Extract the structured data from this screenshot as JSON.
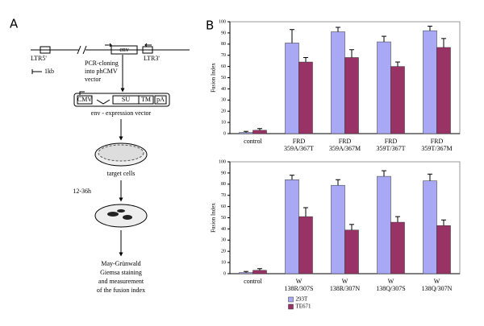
{
  "panel_a": {
    "label": "A",
    "ltr5": "LTR5'",
    "env": "env",
    "ltr3": "LTR3'",
    "scale": "1kb",
    "cloning": [
      "PCR-cloning",
      "into phCMV",
      "vector"
    ],
    "vector_parts": [
      "CMV",
      "SU",
      "TM",
      "pA"
    ],
    "vector_caption": "env - expression vector",
    "target": "target cells",
    "time": "12-36h",
    "staining": [
      "May-Grünwald",
      "Giemsa staining",
      "and measurement",
      "of the fusion index"
    ]
  },
  "panel_b_label": "B",
  "chart_data": [
    {
      "type": "bar",
      "y_label": "Fusion Index",
      "categories": [
        [
          "control"
        ],
        [
          "FRD",
          "359A/367T"
        ],
        [
          "FRD",
          "359A/367M"
        ],
        [
          "FRD",
          "359T/367T"
        ],
        [
          "FRD",
          "359T/367M"
        ]
      ],
      "series": [
        {
          "color": "#a8a8f4",
          "values": [
            1,
            81,
            91,
            82,
            92
          ],
          "errors": [
            1,
            12,
            4,
            5,
            4
          ]
        },
        {
          "color": "#993366",
          "values": [
            3,
            64,
            68,
            60,
            77
          ],
          "errors": [
            1.5,
            4,
            7,
            4,
            8
          ]
        }
      ],
      "ylim": [
        0,
        100
      ],
      "yticks": [
        0,
        10,
        20,
        30,
        40,
        50,
        60,
        70,
        80,
        90,
        100
      ]
    },
    {
      "type": "bar",
      "y_label": "Fusion Index",
      "categories": [
        [
          "control"
        ],
        [
          "W",
          "138R/307S"
        ],
        [
          "W",
          "138R/307N"
        ],
        [
          "W",
          "138Q/307S"
        ],
        [
          "W",
          "138Q/307N"
        ]
      ],
      "series": [
        {
          "name": "293T",
          "color": "#a8a8f4",
          "values": [
            1,
            84,
            79,
            87,
            83
          ],
          "errors": [
            1,
            4,
            5,
            5,
            6
          ]
        },
        {
          "name": "TE671",
          "color": "#993366",
          "values": [
            3,
            51,
            39,
            46,
            43
          ],
          "errors": [
            1.5,
            8,
            5,
            5,
            5
          ]
        }
      ],
      "ylim": [
        0,
        100
      ],
      "yticks": [
        0,
        10,
        20,
        30,
        40,
        50,
        60,
        70,
        80,
        90,
        100
      ],
      "legend": "bottom"
    }
  ]
}
